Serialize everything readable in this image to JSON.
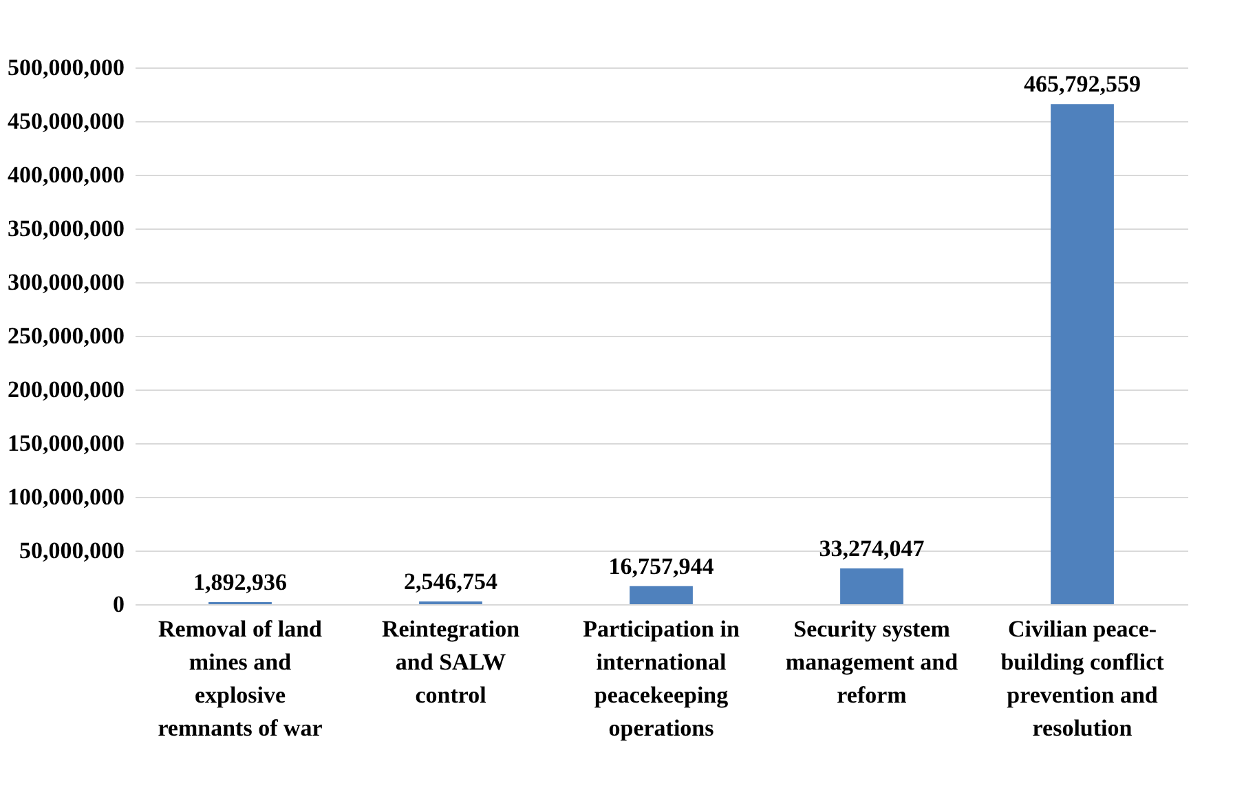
{
  "chart_data": {
    "type": "bar",
    "categories": [
      "Removal of land mines and explosive remnants of war",
      "Reintegration and SALW control",
      "Participation in international peacekeeping operations",
      "Security system management and reform",
      "Civilian peace-building conflict prevention and resolution"
    ],
    "values": [
      1892936,
      2546754,
      16757944,
      33274047,
      465792559
    ],
    "value_labels": [
      "1,892,936",
      "2,546,754",
      "16,757,944",
      "33,274,047",
      "465,792,559"
    ],
    "color": "#4f81bd",
    "ylim": [
      0,
      500000000
    ],
    "yticks": [
      0,
      {
        "value": 50000000,
        "label": "50,000,000"
      },
      {
        "value": 100000000,
        "label": "100,000,000"
      },
      {
        "value": 150000000,
        "label": "150,000,000"
      },
      {
        "value": 200000000,
        "label": "200,000,000"
      },
      {
        "value": 250000000,
        "label": "250,000,000"
      },
      {
        "value": 300000000,
        "label": "300,000,000"
      },
      {
        "value": 350000000,
        "label": "350,000,000"
      },
      {
        "value": 400000000,
        "label": "400,000,000"
      },
      {
        "value": 450000000,
        "label": "450,000,000"
      },
      {
        "value": 500000000,
        "label": "500,000,000"
      }
    ],
    "grid": "y"
  }
}
